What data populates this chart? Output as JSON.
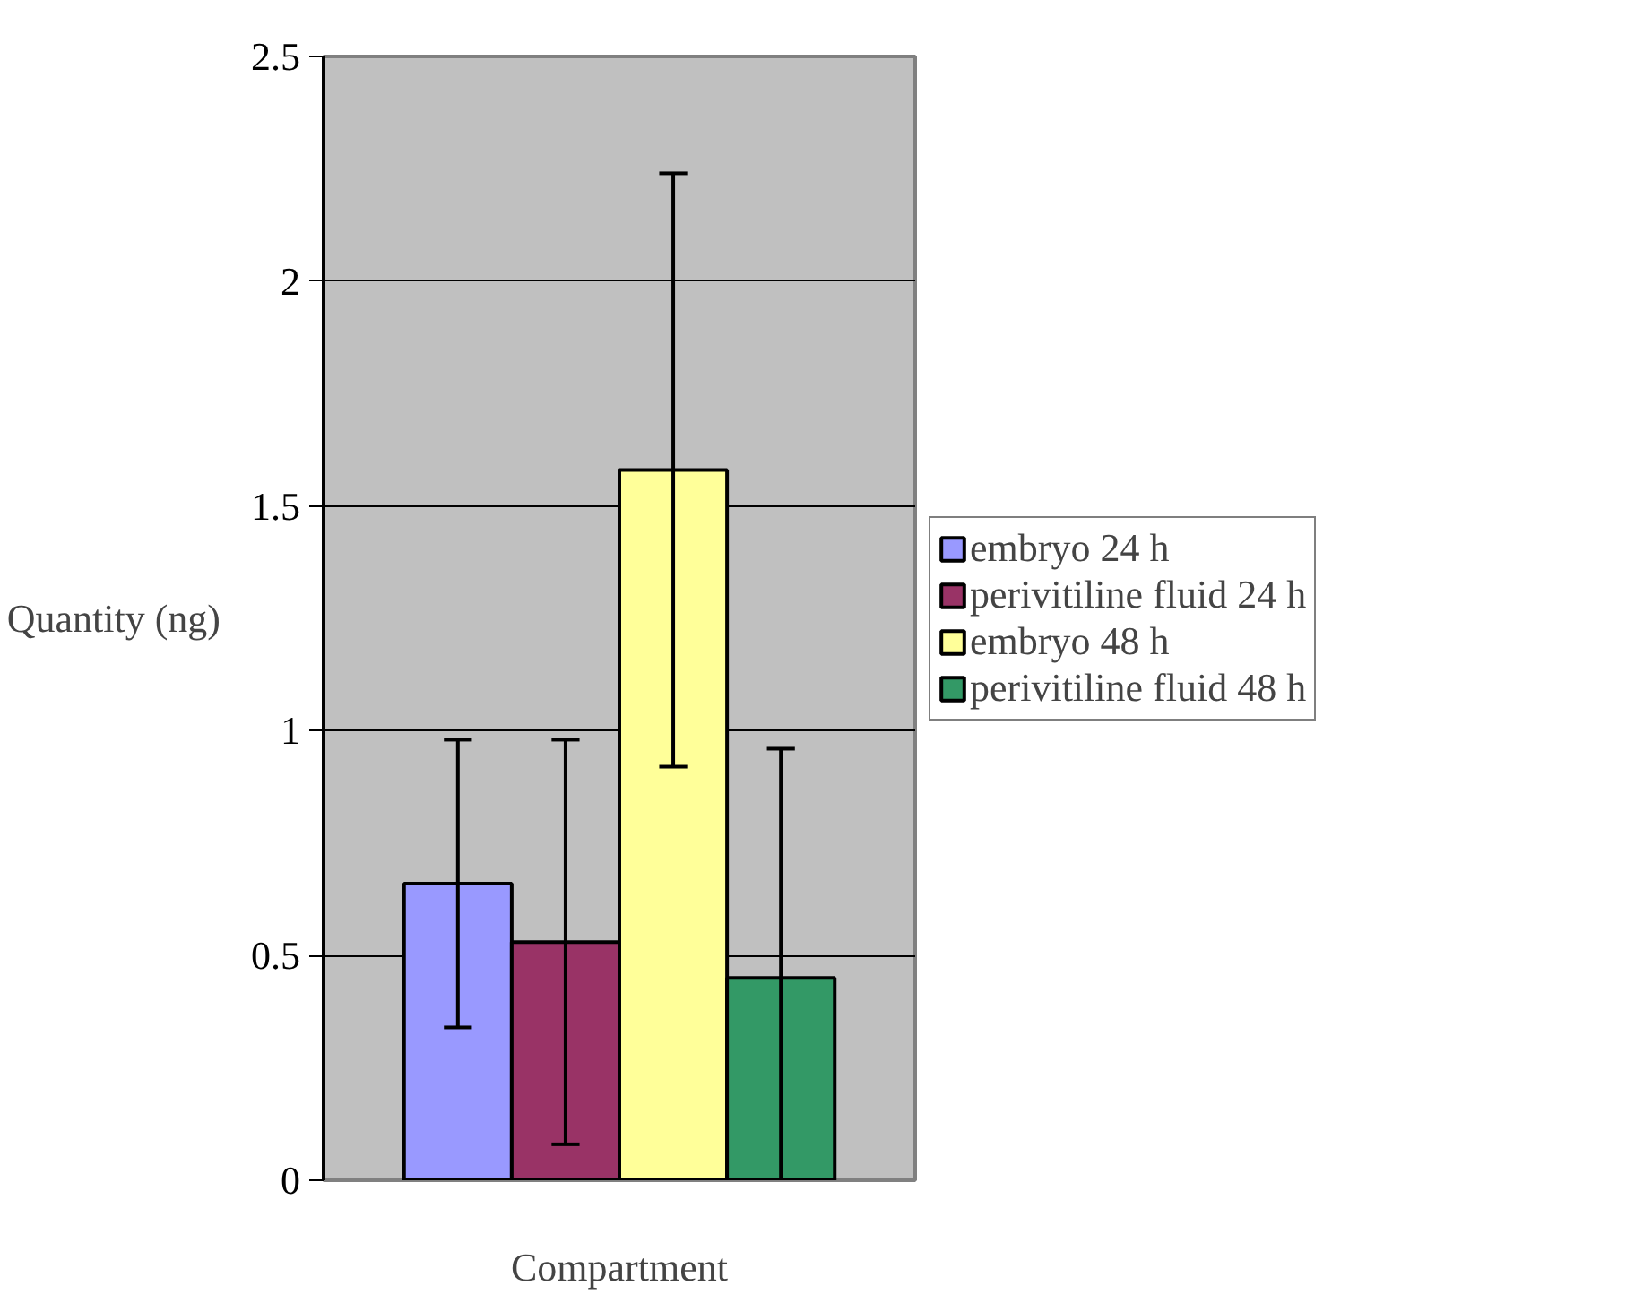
{
  "chart_data": {
    "type": "bar",
    "xlabel": "Compartment",
    "ylabel": "Quantity (ng)",
    "categories": [
      null
    ],
    "series": [
      {
        "name": "embryo 24 h",
        "color": "#9999ff",
        "values": [
          0.66
        ],
        "errors": [
          0.32
        ]
      },
      {
        "name": "perivitiline fluid 24 h",
        "color": "#993366",
        "values": [
          0.53
        ],
        "errors": [
          0.45
        ]
      },
      {
        "name": "embryo 48 h",
        "color": "#ffff99",
        "values": [
          1.58
        ],
        "errors": [
          0.66
        ]
      },
      {
        "name": "perivitiline fluid 48 h",
        "color": "#339966",
        "values": [
          0.45
        ],
        "errors": [
          [
            0,
            0.96
          ]
        ]
      }
    ],
    "ylim": [
      0,
      2.5
    ],
    "yticks": [
      0,
      0.5,
      1,
      1.5,
      2,
      2.5
    ],
    "grid": "y",
    "legend": "right",
    "tick_labels": "y"
  }
}
